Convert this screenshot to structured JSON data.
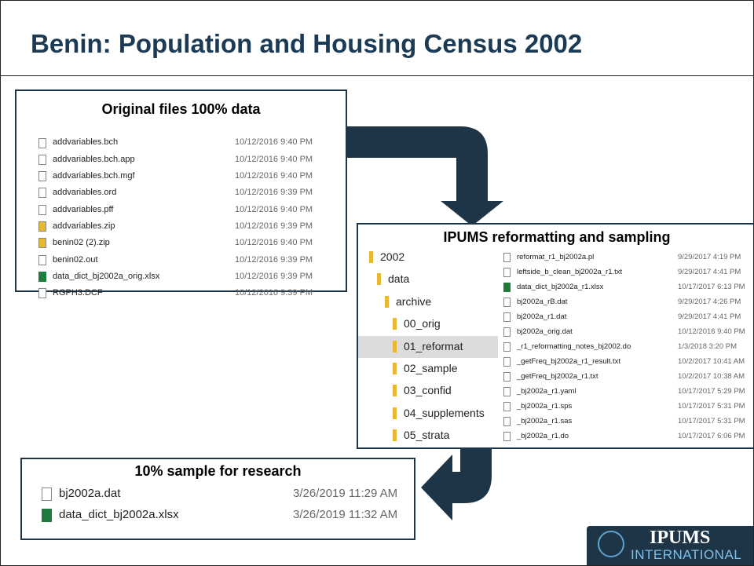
{
  "title": "Benin: Population and Housing Census 2002",
  "original": {
    "title": "Original files 100% data",
    "files": [
      {
        "name": "addvariables.bch",
        "date": "10/12/2016 9:40 PM"
      },
      {
        "name": "addvariables.bch.app",
        "date": "10/12/2016 9:40 PM"
      },
      {
        "name": "addvariables.bch.mgf",
        "date": "10/12/2016 9:40 PM"
      },
      {
        "name": "addvariables.ord",
        "date": "10/12/2016 9:39 PM"
      },
      {
        "name": "addvariables.pff",
        "date": "10/12/2016 9:40 PM"
      },
      {
        "name": "addvariables.zip",
        "date": "10/12/2016 9:39 PM"
      },
      {
        "name": "benin02 (2).zip",
        "date": "10/12/2016 9:40 PM"
      },
      {
        "name": "benin02.out",
        "date": "10/12/2016 9:39 PM"
      },
      {
        "name": "data_dict_bj2002a_orig.xlsx",
        "date": "10/12/2016 9:39 PM"
      },
      {
        "name": "RGPH3.DCF",
        "date": "10/12/2016 9:39 PM"
      }
    ]
  },
  "reformat": {
    "title": "IPUMS reformatting and sampling",
    "folders": [
      "2002",
      "data",
      "archive",
      "00_orig",
      "01_reformat",
      "02_sample",
      "03_confid",
      "04_supplements",
      "05_strata"
    ],
    "files": [
      {
        "name": "reformat_r1_bj2002a.pl",
        "date": "9/29/2017 4:19 PM"
      },
      {
        "name": "leftside_b_clean_bj2002a_r1.txt",
        "date": "9/29/2017 4:41 PM"
      },
      {
        "name": "data_dict_bj2002a_r1.xlsx",
        "date": "10/17/2017 6:13 PM"
      },
      {
        "name": "bj2002a_rB.dat",
        "date": "9/29/2017 4:26 PM"
      },
      {
        "name": "bj2002a_r1.dat",
        "date": "9/29/2017 4:41 PM"
      },
      {
        "name": "bj2002a_orig.dat",
        "date": "10/12/2016 9:40 PM"
      },
      {
        "name": "_r1_reformatting_notes_bj2002.do",
        "date": "1/3/2018 3:20 PM"
      },
      {
        "name": "_getFreq_bj2002a_r1_result.txt",
        "date": "10/2/2017 10:41 AM"
      },
      {
        "name": "_getFreq_bj2002a_r1.txt",
        "date": "10/2/2017 10:38 AM"
      },
      {
        "name": "_bj2002a_r1.yaml",
        "date": "10/17/2017 5:29 PM"
      },
      {
        "name": "_bj2002a_r1.sps",
        "date": "10/17/2017 5:31 PM"
      },
      {
        "name": "_bj2002a_r1.sas",
        "date": "10/17/2017 5:31 PM"
      },
      {
        "name": "_bj2002a_r1.do",
        "date": "10/17/2017 6:06 PM"
      }
    ]
  },
  "sample": {
    "title": "10% sample for research",
    "files": [
      {
        "name": "bj2002a.dat",
        "date": "3/26/2019 11:29 AM"
      },
      {
        "name": "data_dict_bj2002a.xlsx",
        "date": "3/26/2019 11:32 AM"
      }
    ]
  },
  "logo": {
    "main": "IPUMS",
    "sub": "INTERNATIONAL"
  }
}
